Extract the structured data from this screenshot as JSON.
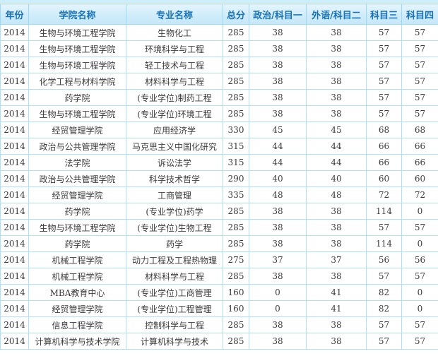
{
  "colors": {
    "header_text": "#1872b7",
    "header_bg_top": "#e4f5fd",
    "header_bg_bottom": "#c6e7f8",
    "border": "#aee1f8",
    "top_strip": "#cdeefb",
    "cell_text": "#3b3b3b"
  },
  "table": {
    "columns": [
      {
        "key": "year",
        "label": "年份"
      },
      {
        "key": "college",
        "label": "学院名称"
      },
      {
        "key": "major",
        "label": "专业名称"
      },
      {
        "key": "total",
        "label": "总分"
      },
      {
        "key": "politics",
        "label": "政治/科目一"
      },
      {
        "key": "foreign",
        "label": "外语/科目二"
      },
      {
        "key": "subject3",
        "label": "科目三"
      },
      {
        "key": "subject4",
        "label": "科目四"
      }
    ],
    "rows": [
      {
        "year": "2014",
        "college": "生物与环境工程学院",
        "major": "生物化工",
        "total": "285",
        "politics": "38",
        "foreign": "38",
        "subject3": "57",
        "subject4": "57"
      },
      {
        "year": "2014",
        "college": "生物与环境工程学院",
        "major": "环境科学与工程",
        "total": "285",
        "politics": "38",
        "foreign": "38",
        "subject3": "57",
        "subject4": "57"
      },
      {
        "year": "2014",
        "college": "生物与环境工程学院",
        "major": "轻工技术与工程",
        "total": "285",
        "politics": "38",
        "foreign": "38",
        "subject3": "57",
        "subject4": "57"
      },
      {
        "year": "2014",
        "college": "化学工程与材料学院",
        "major": "材料科学与工程",
        "total": "285",
        "politics": "38",
        "foreign": "38",
        "subject3": "57",
        "subject4": "57"
      },
      {
        "year": "2014",
        "college": "药学院",
        "major": "(专业学位)制药工程",
        "total": "285",
        "politics": "38",
        "foreign": "38",
        "subject3": "57",
        "subject4": "57"
      },
      {
        "year": "2014",
        "college": "生物与环境工程学院",
        "major": "(专业学位)环境工程",
        "total": "285",
        "politics": "38",
        "foreign": "38",
        "subject3": "57",
        "subject4": "57"
      },
      {
        "year": "2014",
        "college": "经贸管理学院",
        "major": "应用经济学",
        "total": "330",
        "politics": "45",
        "foreign": "45",
        "subject3": "68",
        "subject4": "68"
      },
      {
        "year": "2014",
        "college": "政治与公共管理学院",
        "major": "马克思主义中国化研究",
        "total": "315",
        "politics": "44",
        "foreign": "44",
        "subject3": "66",
        "subject4": "66"
      },
      {
        "year": "2014",
        "college": "法学院",
        "major": "诉讼法学",
        "total": "315",
        "politics": "44",
        "foreign": "44",
        "subject3": "66",
        "subject4": "66"
      },
      {
        "year": "2014",
        "college": "政治与公共管理学院",
        "major": "科学技术哲学",
        "total": "290",
        "politics": "40",
        "foreign": "40",
        "subject3": "60",
        "subject4": "60"
      },
      {
        "year": "2014",
        "college": "经贸管理学院",
        "major": "工商管理",
        "total": "335",
        "politics": "48",
        "foreign": "48",
        "subject3": "72",
        "subject4": "72"
      },
      {
        "year": "2014",
        "college": "药学院",
        "major": "(专业学位)药学",
        "total": "285",
        "politics": "38",
        "foreign": "38",
        "subject3": "114",
        "subject4": "0"
      },
      {
        "year": "2014",
        "college": "生物与环境工程学院",
        "major": "(专业学位)生物工程",
        "total": "285",
        "politics": "38",
        "foreign": "38",
        "subject3": "57",
        "subject4": "57"
      },
      {
        "year": "2014",
        "college": "药学院",
        "major": "药学",
        "total": "285",
        "politics": "38",
        "foreign": "38",
        "subject3": "114",
        "subject4": "0"
      },
      {
        "year": "2014",
        "college": "机械工程学院",
        "major": "动力工程及工程热物理",
        "total": "275",
        "politics": "37",
        "foreign": "37",
        "subject3": "56",
        "subject4": "56"
      },
      {
        "year": "2014",
        "college": "机械工程学院",
        "major": "材料科学与工程",
        "total": "285",
        "politics": "38",
        "foreign": "38",
        "subject3": "57",
        "subject4": "57"
      },
      {
        "year": "2014",
        "college": "MBA教育中心",
        "major": "(专业学位)工商管理",
        "total": "160",
        "politics": "0",
        "foreign": "41",
        "subject3": "82",
        "subject4": "0"
      },
      {
        "year": "2014",
        "college": "经贸管理学院",
        "major": "(专业学位)工程管理",
        "total": "160",
        "politics": "0",
        "foreign": "41",
        "subject3": "82",
        "subject4": "0"
      },
      {
        "year": "2014",
        "college": "信息工程学院",
        "major": "控制科学与工程",
        "total": "285",
        "politics": "38",
        "foreign": "38",
        "subject3": "57",
        "subject4": "57"
      },
      {
        "year": "2014",
        "college": "计算机科学与技术学院",
        "major": "计算机科学与技术",
        "total": "285",
        "politics": "38",
        "foreign": "38",
        "subject3": "57",
        "subject4": "57"
      }
    ]
  }
}
